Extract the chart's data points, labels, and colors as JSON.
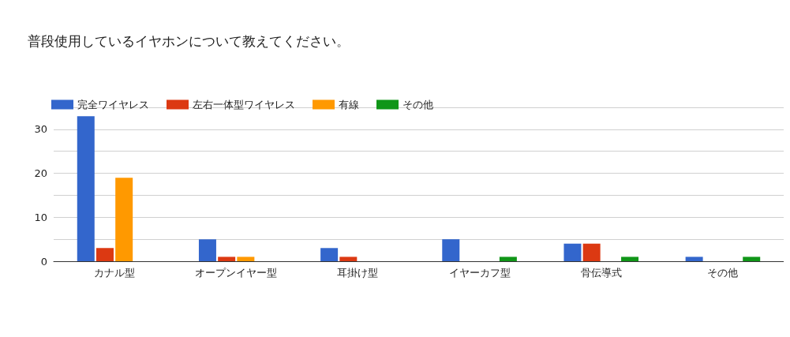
{
  "chart_data": {
    "type": "bar",
    "title": "普段使用しているイヤホンについて教えてください。",
    "categories": [
      "カナル型",
      "オープンイヤー型",
      "耳掛け型",
      "イヤーカフ型",
      "骨伝導式",
      "その他"
    ],
    "series": [
      {
        "name": "完全ワイヤレス",
        "color": "#3366cc",
        "values": [
          33,
          5,
          3,
          5,
          4,
          1
        ]
      },
      {
        "name": "左右一体型ワイヤレス",
        "color": "#dc3912",
        "values": [
          3,
          1,
          1,
          0,
          4,
          0
        ]
      },
      {
        "name": "有線",
        "color": "#ff9900",
        "values": [
          19,
          1,
          0,
          0,
          0,
          0
        ]
      },
      {
        "name": "その他",
        "color": "#109618",
        "values": [
          0,
          0,
          0,
          1,
          1,
          1
        ]
      }
    ],
    "ylim": [
      0,
      35
    ],
    "yticks": [
      0,
      {
        "value": 5,
        "label": null
      },
      10,
      {
        "value": 15,
        "label": null
      },
      20,
      {
        "value": 25,
        "label": null
      },
      30,
      {
        "value": 35,
        "label": null
      }
    ],
    "grid": "y",
    "legend": "top left"
  }
}
